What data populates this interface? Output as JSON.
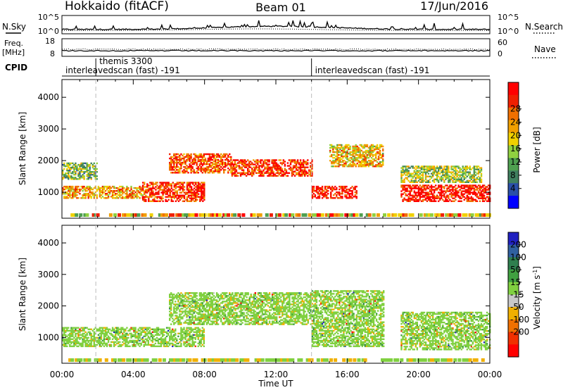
{
  "header": {
    "station": "Hokkaido (fitACF)",
    "beam": "Beam 01",
    "date": "17/Jun/2016"
  },
  "nsky_panel": {
    "left_label": "N.Sky",
    "right_label": "N.Search",
    "left_ticks": [
      "10^5",
      "10^0"
    ],
    "right_ticks": [
      "10^5",
      "10^0"
    ]
  },
  "freq_panel": {
    "left_label_line1": "Freq.",
    "left_label_line2": "[MHz]",
    "right_label": "Nave",
    "left_ticks": [
      "18",
      "8"
    ],
    "right_ticks": [
      "60",
      "0"
    ]
  },
  "cpid_panel": {
    "label": "CPID",
    "programs": [
      {
        "name": "themis 3300",
        "start_hour": 1.9,
        "row": 1
      },
      {
        "name": "interleavedscan (fast) -191",
        "start_hour": 0,
        "row": 2
      },
      {
        "name": "interleavedscan (fast) -191",
        "start_hour": 14.0,
        "row": 2
      }
    ]
  },
  "x_axis": {
    "label": "Time UT",
    "ticks": [
      "00:00",
      "04:00",
      "08:00",
      "12:00",
      "16:00",
      "20:00",
      "00:00"
    ]
  },
  "range_axis": {
    "label": "Slant Range [km]",
    "ticks": [
      "1000",
      "2000",
      "3000",
      "4000"
    ]
  },
  "power_colorbar": {
    "label": "Power [dB]",
    "ticks": [
      "4",
      "8",
      "12",
      "16",
      "20",
      "24",
      "28"
    ],
    "colors": [
      "#0000ff",
      "#2a4fa8",
      "#3f7f5f",
      "#4fa050",
      "#90d040",
      "#f0d000",
      "#f0a000",
      "#f07000",
      "#f02000",
      "#ff0000"
    ]
  },
  "velocity_colorbar": {
    "label": "Velocity [m s",
    "label_sup": "-1",
    "label_close": "]",
    "ticks": [
      "200",
      "100",
      "50",
      "15",
      "-15",
      "-50",
      "-100",
      "-200"
    ],
    "colors": [
      "#2020c0",
      "#3060a0",
      "#2f7f4f",
      "#40a040",
      "#80d040",
      "#c8c8c8",
      "#f0b000",
      "#f07000",
      "#f03000",
      "#ff0000"
    ]
  },
  "chart_data": {
    "type": "heatmap",
    "title": "Hokkaido (fitACF) Beam 01 17/Jun/2016",
    "xlabel": "Time UT",
    "ylabel": "Slant Range [km]",
    "xlim": [
      0,
      24
    ],
    "ylim": [
      180,
      4560
    ],
    "panels": [
      {
        "name": "Power [dB]",
        "clim": [
          0,
          30
        ],
        "echo_regions": [
          {
            "t_start": 0.0,
            "t_end": 4.5,
            "range_start": 800,
            "range_end": 1200,
            "value": 20
          },
          {
            "t_start": 0.0,
            "t_end": 2.0,
            "range_start": 1400,
            "range_end": 1900,
            "value": 12
          },
          {
            "t_start": 4.5,
            "t_end": 8.0,
            "range_start": 700,
            "range_end": 1300,
            "value": 26
          },
          {
            "t_start": 6.0,
            "t_end": 9.5,
            "range_start": 1600,
            "range_end": 2200,
            "value": 24
          },
          {
            "t_start": 9.5,
            "t_end": 14.0,
            "range_start": 1500,
            "range_end": 2000,
            "value": 26
          },
          {
            "t_start": 14.0,
            "t_end": 16.5,
            "range_start": 800,
            "range_end": 1200,
            "value": 28
          },
          {
            "t_start": 15.0,
            "t_end": 18.0,
            "range_start": 1800,
            "range_end": 2500,
            "value": 18
          },
          {
            "t_start": 19.0,
            "t_end": 24.0,
            "range_start": 700,
            "range_end": 1200,
            "value": 28
          },
          {
            "t_start": 19.0,
            "t_end": 23.5,
            "range_start": 1300,
            "range_end": 1800,
            "value": 14
          }
        ]
      },
      {
        "name": "Velocity [m s-1]",
        "clim": [
          -200,
          200
        ],
        "echo_regions": [
          {
            "t_start": 0.0,
            "t_end": 8.0,
            "range_start": 700,
            "range_end": 1300,
            "value": 0
          },
          {
            "t_start": 6.0,
            "t_end": 14.0,
            "range_start": 1400,
            "range_end": 2400,
            "value": 0
          },
          {
            "t_start": 14.0,
            "t_end": 18.0,
            "range_start": 700,
            "range_end": 2500,
            "value": 0
          },
          {
            "t_start": 19.0,
            "t_end": 24.0,
            "range_start": 600,
            "range_end": 1800,
            "value": 0
          }
        ]
      }
    ]
  }
}
